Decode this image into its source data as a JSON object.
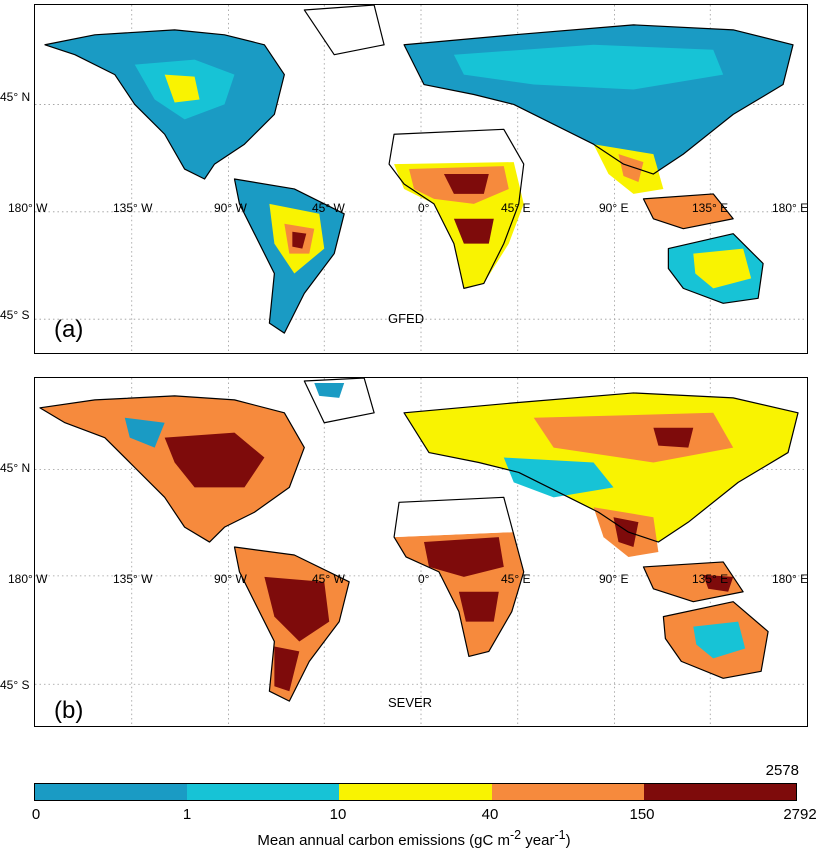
{
  "latitude_labels": [
    "45° N",
    "45° S"
  ],
  "longitude_labels": [
    "180° W",
    "135° W",
    "90° W",
    "45° W",
    "0°",
    "45° E",
    "90° E",
    "135° E",
    "180° E"
  ],
  "panels": [
    {
      "letter": "(a)",
      "name": "GFED",
      "dominant_class": "low emissions: mostly 0–10 over land; high in African savannas, central South America and SE Asia"
    },
    {
      "letter": "(b)",
      "name": "SEVER",
      "dominant_class": "high emissions: mostly 40–2792 over land"
    }
  ],
  "colorbar": {
    "title": "Mean annual carbon emissions (gC m",
    "title_sup": "-2",
    "title_mid": " year",
    "title_sup2": "-1",
    "title_end": ")",
    "ticks": [
      "0",
      "1",
      "10",
      "40",
      "150",
      "2792"
    ],
    "top_label": "2578",
    "colors": [
      "#1a9bc4",
      "#17c3d6",
      "#f9f301",
      "#f68a3d",
      "#7e0b0b"
    ]
  }
}
